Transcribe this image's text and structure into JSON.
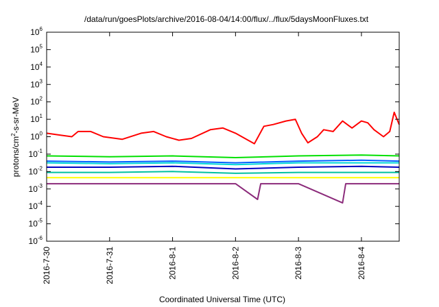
{
  "chart_data": {
    "type": "line",
    "title": "/data/run/goesPlots/archive/2016-08-04/14:00/flux/../flux/5daysMoonFluxes.txt",
    "xlabel": "Coordinated Universal Time (UTC)",
    "ylabel_parts": [
      "protons/cm",
      "2",
      "-s-sr-MeV"
    ],
    "y_scale": "log",
    "ylim": [
      1e-06,
      1000000.0
    ],
    "y_ticks": [
      {
        "base": "10",
        "exp": "-6",
        "value": -6
      },
      {
        "base": "10",
        "exp": "-5",
        "value": -5
      },
      {
        "base": "10",
        "exp": "-4",
        "value": -4
      },
      {
        "base": "10",
        "exp": "-3",
        "value": -3
      },
      {
        "base": "10",
        "exp": "-2",
        "value": -2
      },
      {
        "base": "10",
        "exp": "-1",
        "value": -1
      },
      {
        "base": "10",
        "exp": "0",
        "value": 0
      },
      {
        "base": "10",
        "exp": "1",
        "value": 1
      },
      {
        "base": "10",
        "exp": "2",
        "value": 2
      },
      {
        "base": "10",
        "exp": "3",
        "value": 3
      },
      {
        "base": "10",
        "exp": "4",
        "value": 4
      },
      {
        "base": "10",
        "exp": "5",
        "value": 5
      },
      {
        "base": "10",
        "exp": "6",
        "value": 6
      }
    ],
    "x_range_days": [
      0,
      5.6
    ],
    "x_ticks": [
      {
        "label": "2016-7-30",
        "day": 0
      },
      {
        "label": "2016-7-31",
        "day": 1
      },
      {
        "label": "2016-8-1",
        "day": 2
      },
      {
        "label": "2016-8-2",
        "day": 3
      },
      {
        "label": "2016-8-3",
        "day": 4
      },
      {
        "label": "2016-8-4",
        "day": 5
      }
    ],
    "grid": false,
    "series": [
      {
        "color": "#ff0000",
        "points": [
          [
            0,
            0.2
          ],
          [
            0.2,
            0.1
          ],
          [
            0.4,
            0.0
          ],
          [
            0.5,
            0.3
          ],
          [
            0.7,
            0.3
          ],
          [
            0.9,
            0.0
          ],
          [
            1.2,
            -0.15
          ],
          [
            1.5,
            0.2
          ],
          [
            1.7,
            0.3
          ],
          [
            1.9,
            0.0
          ],
          [
            2.1,
            -0.2
          ],
          [
            2.3,
            -0.1
          ],
          [
            2.6,
            0.4
          ],
          [
            2.8,
            0.5
          ],
          [
            3.0,
            0.2
          ],
          [
            3.2,
            -0.2
          ],
          [
            3.3,
            -0.4
          ],
          [
            3.45,
            0.6
          ],
          [
            3.6,
            0.7
          ],
          [
            3.8,
            0.9
          ],
          [
            3.95,
            1.0
          ],
          [
            4.05,
            0.2
          ],
          [
            4.15,
            -0.35
          ],
          [
            4.3,
            0.0
          ],
          [
            4.4,
            0.4
          ],
          [
            4.55,
            0.3
          ],
          [
            4.7,
            0.9
          ],
          [
            4.85,
            0.5
          ],
          [
            5.0,
            0.9
          ],
          [
            5.1,
            0.8
          ],
          [
            5.2,
            0.4
          ],
          [
            5.35,
            0.0
          ],
          [
            5.45,
            0.3
          ],
          [
            5.52,
            1.4
          ],
          [
            5.6,
            0.7
          ]
        ]
      },
      {
        "color": "#00e000",
        "points": [
          [
            0,
            -1.1
          ],
          [
            1,
            -1.15
          ],
          [
            2,
            -1.1
          ],
          [
            3,
            -1.2
          ],
          [
            4,
            -1.1
          ],
          [
            5,
            -1.05
          ],
          [
            5.6,
            -1.1
          ]
        ]
      },
      {
        "color": "#00d8d8",
        "points": [
          [
            0,
            -1.5
          ],
          [
            1,
            -1.55
          ],
          [
            2,
            -1.5
          ],
          [
            3,
            -1.6
          ],
          [
            4,
            -1.5
          ],
          [
            5,
            -1.5
          ],
          [
            5.6,
            -1.5
          ]
        ]
      },
      {
        "color": "#0060ff",
        "points": [
          [
            0,
            -1.4
          ],
          [
            1,
            -1.45
          ],
          [
            2,
            -1.4
          ],
          [
            3,
            -1.5
          ],
          [
            4,
            -1.4
          ],
          [
            5,
            -1.35
          ],
          [
            5.6,
            -1.4
          ]
        ]
      },
      {
        "color": "#0000c0",
        "points": [
          [
            0,
            -1.75
          ],
          [
            1,
            -1.75
          ],
          [
            2,
            -1.7
          ],
          [
            3,
            -1.85
          ],
          [
            4,
            -1.75
          ],
          [
            5,
            -1.7
          ],
          [
            5.6,
            -1.75
          ]
        ]
      },
      {
        "color": "#00c0a0",
        "points": [
          [
            0,
            -2.05
          ],
          [
            1,
            -2.05
          ],
          [
            2,
            -2.0
          ],
          [
            3,
            -2.1
          ],
          [
            4,
            -2.05
          ],
          [
            5,
            -2.05
          ],
          [
            5.6,
            -2.05
          ]
        ]
      },
      {
        "color": "#ffff00",
        "points": [
          [
            0,
            -2.35
          ],
          [
            5.6,
            -2.35
          ]
        ]
      },
      {
        "color": "#8b2a7a",
        "points": [
          [
            0,
            -2.7
          ],
          [
            1,
            -2.7
          ],
          [
            2,
            -2.7
          ],
          [
            3,
            -2.7
          ],
          [
            3.35,
            -3.6
          ],
          [
            3.4,
            -2.7
          ],
          [
            4,
            -2.7
          ],
          [
            4.7,
            -3.8
          ],
          [
            4.75,
            -2.7
          ],
          [
            5.6,
            -2.7
          ]
        ]
      }
    ]
  }
}
